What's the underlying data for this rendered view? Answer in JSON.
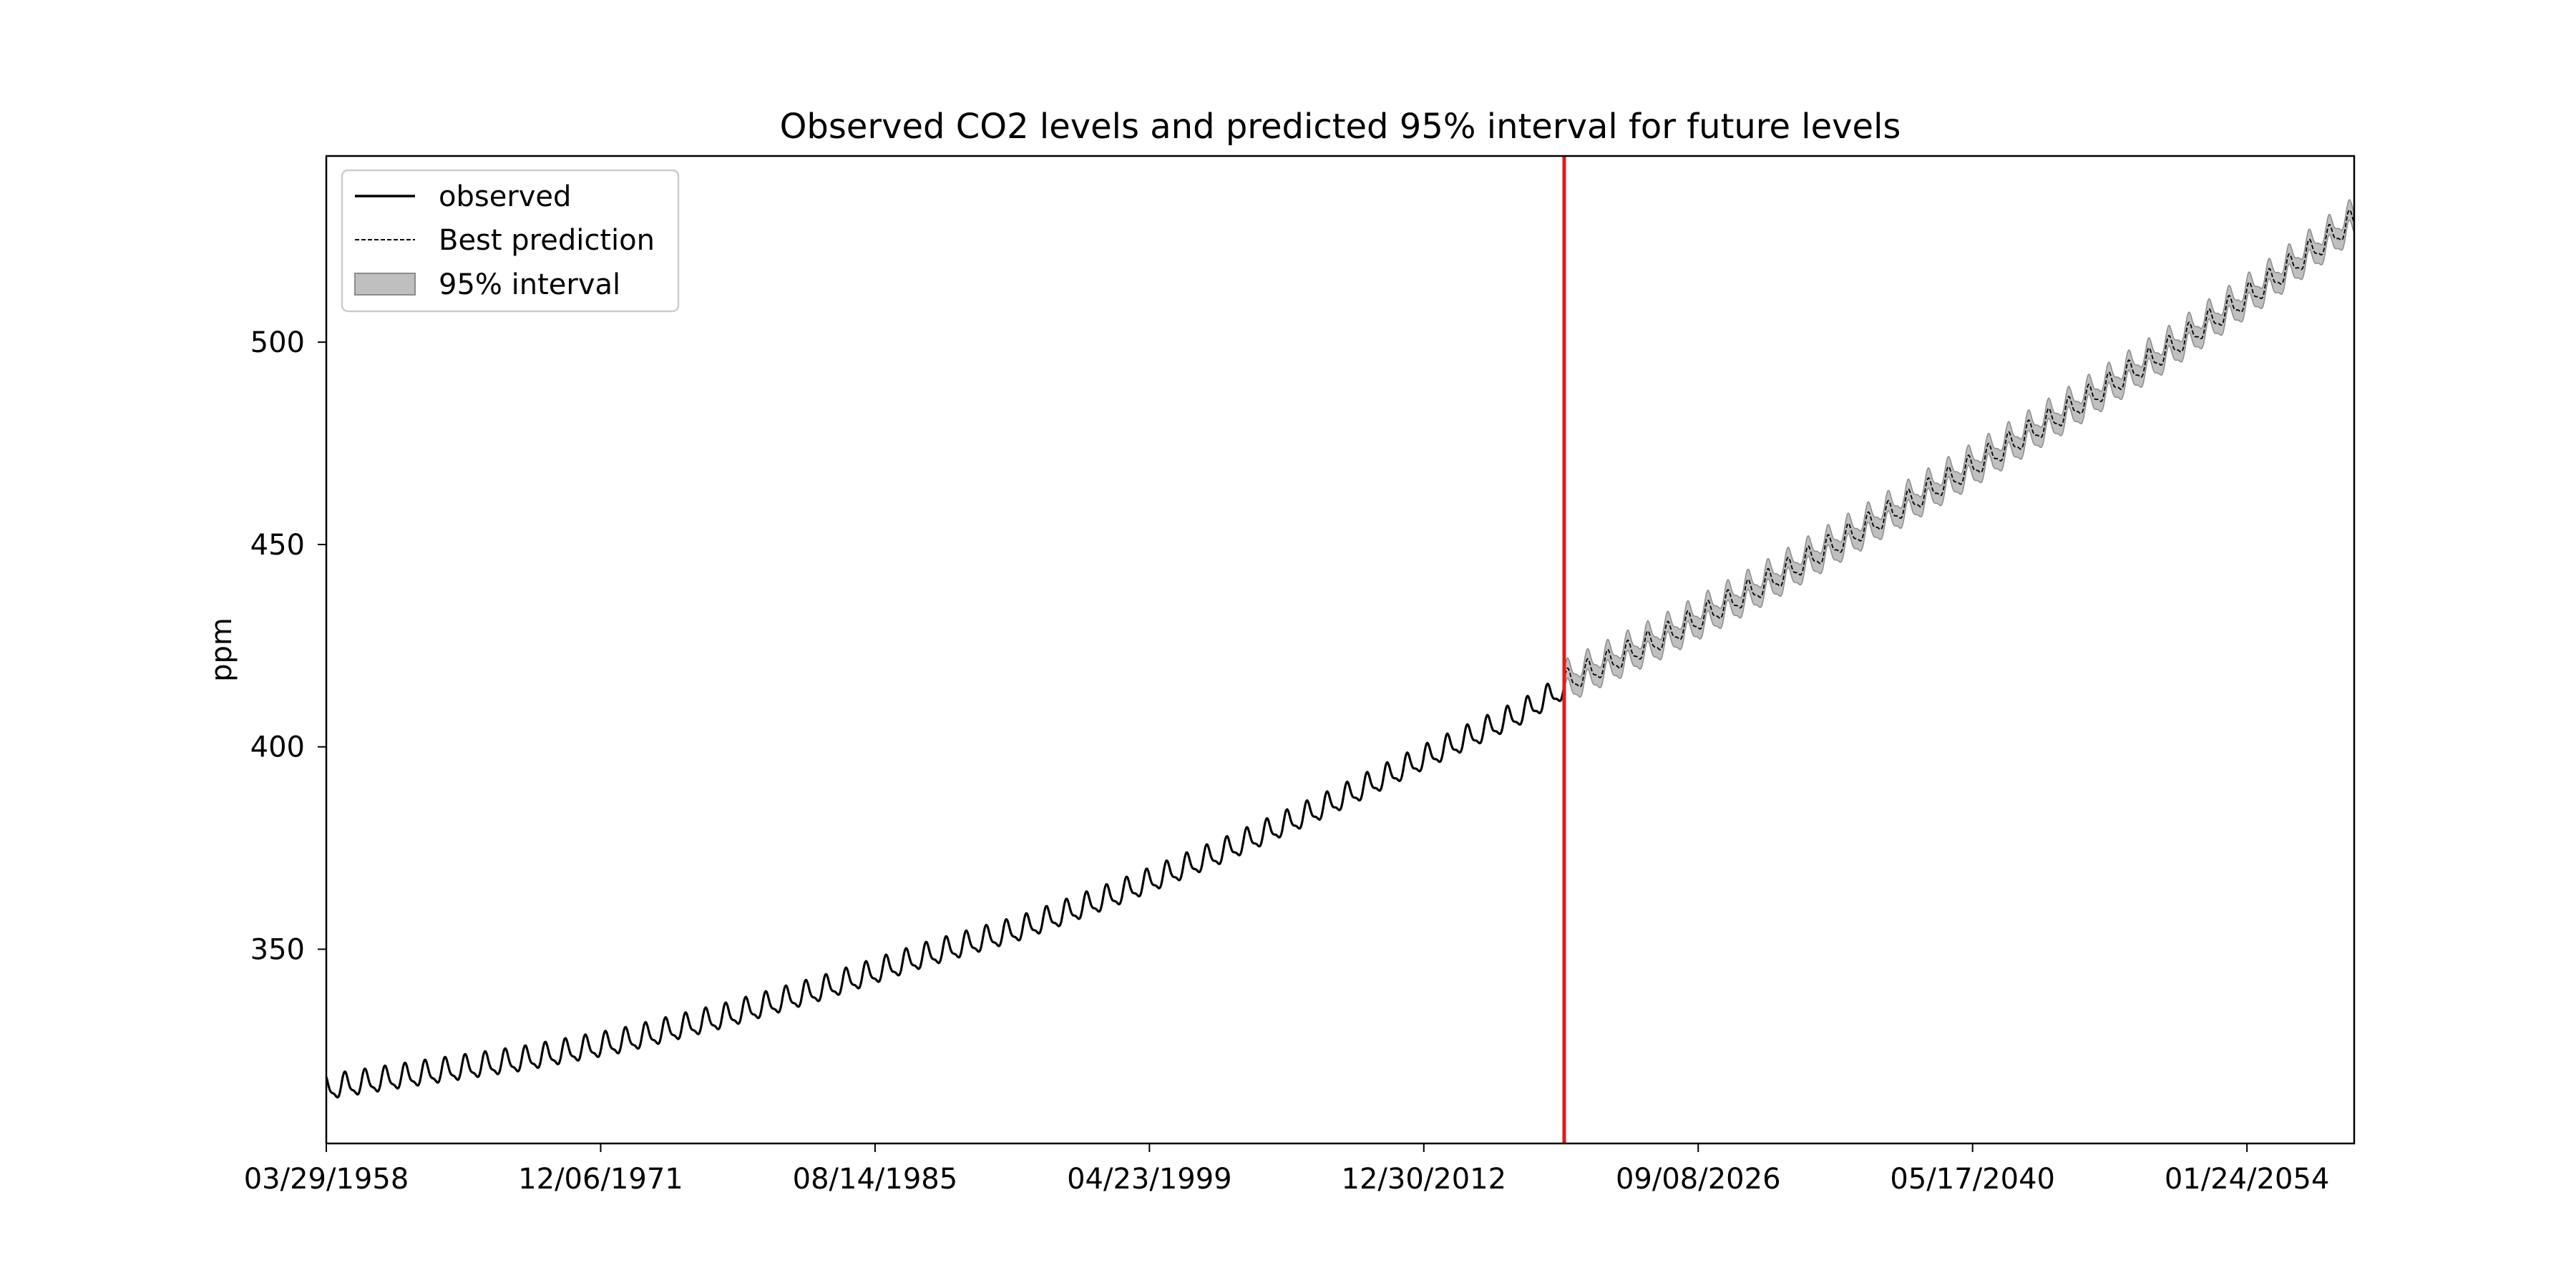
{
  "chart_data": {
    "type": "line",
    "title": "Observed CO2 levels and predicted 95% interval for future levels",
    "xlabel": "",
    "ylabel": "ppm",
    "x_axis_type": "date",
    "xlim": [
      "1958-03-29",
      "2059-06-01"
    ],
    "ylim": [
      302,
      546
    ],
    "x_ticks": [
      {
        "date": "1958-03-29",
        "label": "03/29/1958"
      },
      {
        "date": "1971-12-06",
        "label": "12/06/1971"
      },
      {
        "date": "1985-08-14",
        "label": "08/14/1985"
      },
      {
        "date": "1999-04-23",
        "label": "04/23/1999"
      },
      {
        "date": "2012-12-30",
        "label": "12/30/2012"
      },
      {
        "date": "2026-09-08",
        "label": "09/08/2026"
      },
      {
        "date": "2040-05-17",
        "label": "05/17/2040"
      },
      {
        "date": "2054-01-24",
        "label": "01/24/2054"
      }
    ],
    "y_ticks": [
      350,
      400,
      450,
      500
    ],
    "grid": false,
    "legend": {
      "placement": "top-left",
      "entries": [
        {
          "label": "observed",
          "style": "solid"
        },
        {
          "label": "Best prediction",
          "style": "dashed"
        },
        {
          "label": "95% interval",
          "style": "band"
        }
      ]
    },
    "vertical_line": {
      "date": "2020-01-01",
      "color": "#e41a1c"
    },
    "seasonal_amplitude_ppm": 3.2,
    "interval_half_width_ppm": 2.5,
    "series": [
      {
        "name": "observed",
        "style": "solid",
        "color": "#000000",
        "x": [
          "1958-03-29",
          "1963-01-01",
          "1968-01-01",
          "1973-01-01",
          "1978-01-01",
          "1983-01-01",
          "1988-01-01",
          "1993-01-01",
          "1998-01-01",
          "2003-01-01",
          "2008-01-01",
          "2013-01-01",
          "2018-01-01",
          "2020-01-01"
        ],
        "y": [
          315.5,
          319.0,
          322.5,
          327.0,
          333.0,
          340.0,
          348.0,
          355.0,
          364.0,
          374.0,
          385.0,
          397.0,
          408.5,
          414.5
        ]
      },
      {
        "name": "Best prediction",
        "style": "dashed",
        "color": "#000000",
        "x": [
          "2020-01-01",
          "2025-01-01",
          "2030-01-01",
          "2035-01-01",
          "2040-01-01",
          "2045-01-01",
          "2050-01-01",
          "2055-01-01",
          "2059-06-01"
        ],
        "y": [
          415.5,
          427.0,
          440.0,
          454.0,
          468.0,
          482.5,
          497.5,
          514.0,
          530.0
        ]
      }
    ],
    "colors": {
      "observed": "#000000",
      "prediction": "#000000",
      "interval_fill": "#bfbfbf",
      "interval_edge": "#8c8c8c",
      "vline": "#e41a1c"
    }
  }
}
